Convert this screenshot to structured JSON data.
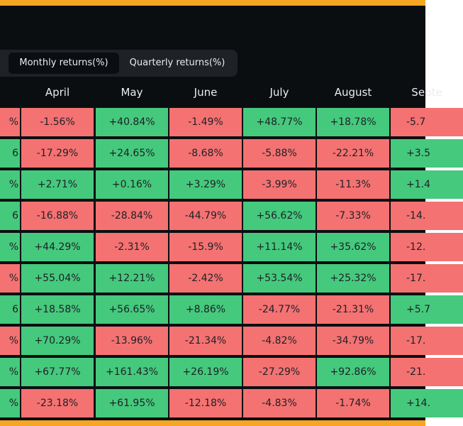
{
  "tabs": [
    "Monthly returns(%)",
    "Quarterly returns(%)"
  ],
  "table": {
    "header": [
      "",
      "April",
      "May",
      "June",
      "July",
      "August",
      "Septe"
    ],
    "rows": [
      [
        "%",
        "-1.56%",
        "+40.84%",
        "-1.49%",
        "+48.77%",
        "+18.78%",
        "-5.7"
      ],
      [
        "6",
        "-17.29%",
        "+24.65%",
        "-8.68%",
        "-5.88%",
        "-22.21%",
        "+3.5"
      ],
      [
        "%",
        "+2.71%",
        "+0.16%",
        "+3.29%",
        "-3.99%",
        "-11.3%",
        "+1.4"
      ],
      [
        "6",
        "-16.88%",
        "-28.84%",
        "-44.79%",
        "+56.62%",
        "-7.33%",
        "-14."
      ],
      [
        "%",
        "+44.29%",
        "-2.31%",
        "-15.9%",
        "+11.14%",
        "+35.62%",
        "-12."
      ],
      [
        "%",
        "+55.04%",
        "+12.21%",
        "-2.42%",
        "+53.54%",
        "+25.32%",
        "-17."
      ],
      [
        "6",
        "+18.58%",
        "+56.65%",
        "+8.86%",
        "-24.77%",
        "-21.31%",
        "+5.7"
      ],
      [
        "%",
        "+70.29%",
        "-13.96%",
        "-21.34%",
        "-4.82%",
        "-34.79%",
        "-17."
      ],
      [
        "%",
        "+67.77%",
        "+161.43%",
        "+26.19%",
        "-27.29%",
        "+92.86%",
        "-21."
      ],
      [
        "%",
        "-23.18%",
        "+61.95%",
        "-12.18%",
        "-4.83%",
        "-1.74%",
        "+14."
      ]
    ],
    "cell_colors": [
      [
        "#f47272",
        "#f47272",
        "#45c97d",
        "#f47272",
        "#45c97d",
        "#45c97d",
        "#f47272"
      ],
      [
        "#45c97d",
        "#f47272",
        "#45c97d",
        "#f47272",
        "#f47272",
        "#f47272",
        "#45c97d"
      ],
      [
        "#45c97d",
        "#45c97d",
        "#45c97d",
        "#45c97d",
        "#f47272",
        "#f47272",
        "#45c97d"
      ],
      [
        "#45c97d",
        "#f47272",
        "#f47272",
        "#f47272",
        "#45c97d",
        "#f47272",
        "#f47272"
      ],
      [
        "#45c97d",
        "#45c97d",
        "#f47272",
        "#f47272",
        "#45c97d",
        "#45c97d",
        "#f47272"
      ],
      [
        "#f47272",
        "#45c97d",
        "#45c97d",
        "#f47272",
        "#45c97d",
        "#45c97d",
        "#f47272"
      ],
      [
        "#45c97d",
        "#45c97d",
        "#45c97d",
        "#45c97d",
        "#f47272",
        "#f47272",
        "#45c97d"
      ],
      [
        "#f47272",
        "#45c97d",
        "#f47272",
        "#f47272",
        "#f47272",
        "#f47272",
        "#f47272"
      ],
      [
        "#45c97d",
        "#45c97d",
        "#45c97d",
        "#45c97d",
        "#f47272",
        "#45c97d",
        "#f47272"
      ],
      [
        "#45c97d",
        "#f47272",
        "#45c97d",
        "#f47272",
        "#f47272",
        "#f47272",
        "#45c97d"
      ]
    ]
  }
}
